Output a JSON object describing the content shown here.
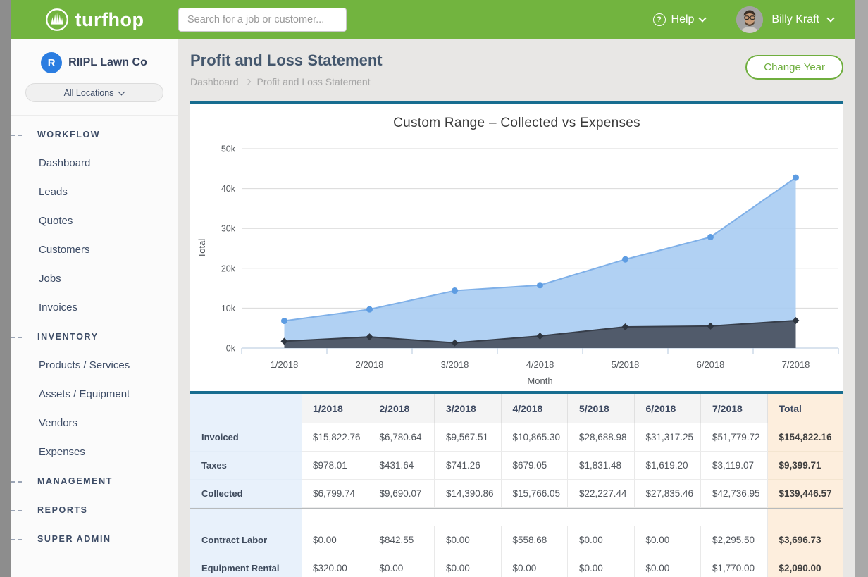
{
  "colors": {
    "brand_green": "#72b43f",
    "accent_teal": "#176d90",
    "navy_text": "#3d4c66",
    "label_col_blue": "#e8f1fb",
    "total_col_peach": "#fdeedd",
    "collected_fill": "#a9ccf2",
    "collected_line": "#7fb0e8",
    "collected_marker": "#5d9ce2",
    "expenses_fill": "#4c5463",
    "expenses_line": "#373e4a",
    "expenses_marker": "#2e353f"
  },
  "header": {
    "logo_text": "turfhop",
    "search_placeholder": "Search for a job or customer...",
    "help_label": "Help",
    "user_name": "Billy Kraft"
  },
  "sidebar": {
    "company_initial": "R",
    "company_name": "RIIPL Lawn Co",
    "location_selector": "All Locations",
    "sections": [
      {
        "label": "WORKFLOW",
        "items": [
          "Dashboard",
          "Leads",
          "Quotes",
          "Customers",
          "Jobs",
          "Invoices"
        ]
      },
      {
        "label": "INVENTORY",
        "items": [
          "Products / Services",
          "Assets / Equipment",
          "Vendors",
          "Expenses"
        ]
      },
      {
        "label": "MANAGEMENT",
        "items": []
      },
      {
        "label": "REPORTS",
        "items": []
      },
      {
        "label": "SUPER ADMIN",
        "items": []
      }
    ]
  },
  "page": {
    "title": "Profit and Loss Statement",
    "breadcrumb": [
      "Dashboard",
      "Profit and Loss Statement"
    ],
    "change_year_button": "Change Year"
  },
  "chart_data": {
    "type": "area",
    "title": "Custom Range – Collected vs Expenses",
    "xlabel": "Month",
    "ylabel": "Total",
    "categories": [
      "1/2018",
      "2/2018",
      "3/2018",
      "4/2018",
      "5/2018",
      "6/2018",
      "7/2018"
    ],
    "ylim": [
      0,
      50000
    ],
    "ytick_step": 10000,
    "ytick_labels": [
      "0k",
      "10k",
      "20k",
      "30k",
      "40k",
      "50k"
    ],
    "grid": true,
    "legend": "none",
    "series": [
      {
        "name": "Collected",
        "marker": "circle",
        "values": [
          6799.74,
          9690.07,
          14390.86,
          15766.05,
          22227.44,
          27835.46,
          42736.95
        ]
      },
      {
        "name": "Expenses",
        "marker": "diamond",
        "values": [
          1700,
          2800,
          1300,
          3000,
          5300,
          5500,
          6900
        ]
      }
    ]
  },
  "table": {
    "columns": [
      "1/2018",
      "2/2018",
      "3/2018",
      "4/2018",
      "5/2018",
      "6/2018",
      "7/2018",
      "Total"
    ],
    "sections": [
      {
        "rows": [
          {
            "label": "Invoiced",
            "values": [
              "$15,822.76",
              "$6,780.64",
              "$9,567.51",
              "$10,865.30",
              "$28,688.98",
              "$31,317.25",
              "$51,779.72"
            ],
            "total": "$154,822.16"
          },
          {
            "label": "Taxes",
            "values": [
              "$978.01",
              "$431.64",
              "$741.26",
              "$679.05",
              "$1,831.48",
              "$1,619.20",
              "$3,119.07"
            ],
            "total": "$9,399.71"
          },
          {
            "label": "Collected",
            "values": [
              "$6,799.74",
              "$9,690.07",
              "$14,390.86",
              "$15,766.05",
              "$22,227.44",
              "$27,835.46",
              "$42,736.95"
            ],
            "total": "$139,446.57"
          }
        ]
      },
      {
        "rows": [
          {
            "label": "Contract Labor",
            "values": [
              "$0.00",
              "$842.55",
              "$0.00",
              "$558.68",
              "$0.00",
              "$0.00",
              "$2,295.50"
            ],
            "total": "$3,696.73"
          },
          {
            "label": "Equipment Rental",
            "values": [
              "$320.00",
              "$0.00",
              "$0.00",
              "$0.00",
              "$0.00",
              "$0.00",
              "$1,770.00"
            ],
            "total": "$2,090.00"
          }
        ]
      }
    ]
  }
}
